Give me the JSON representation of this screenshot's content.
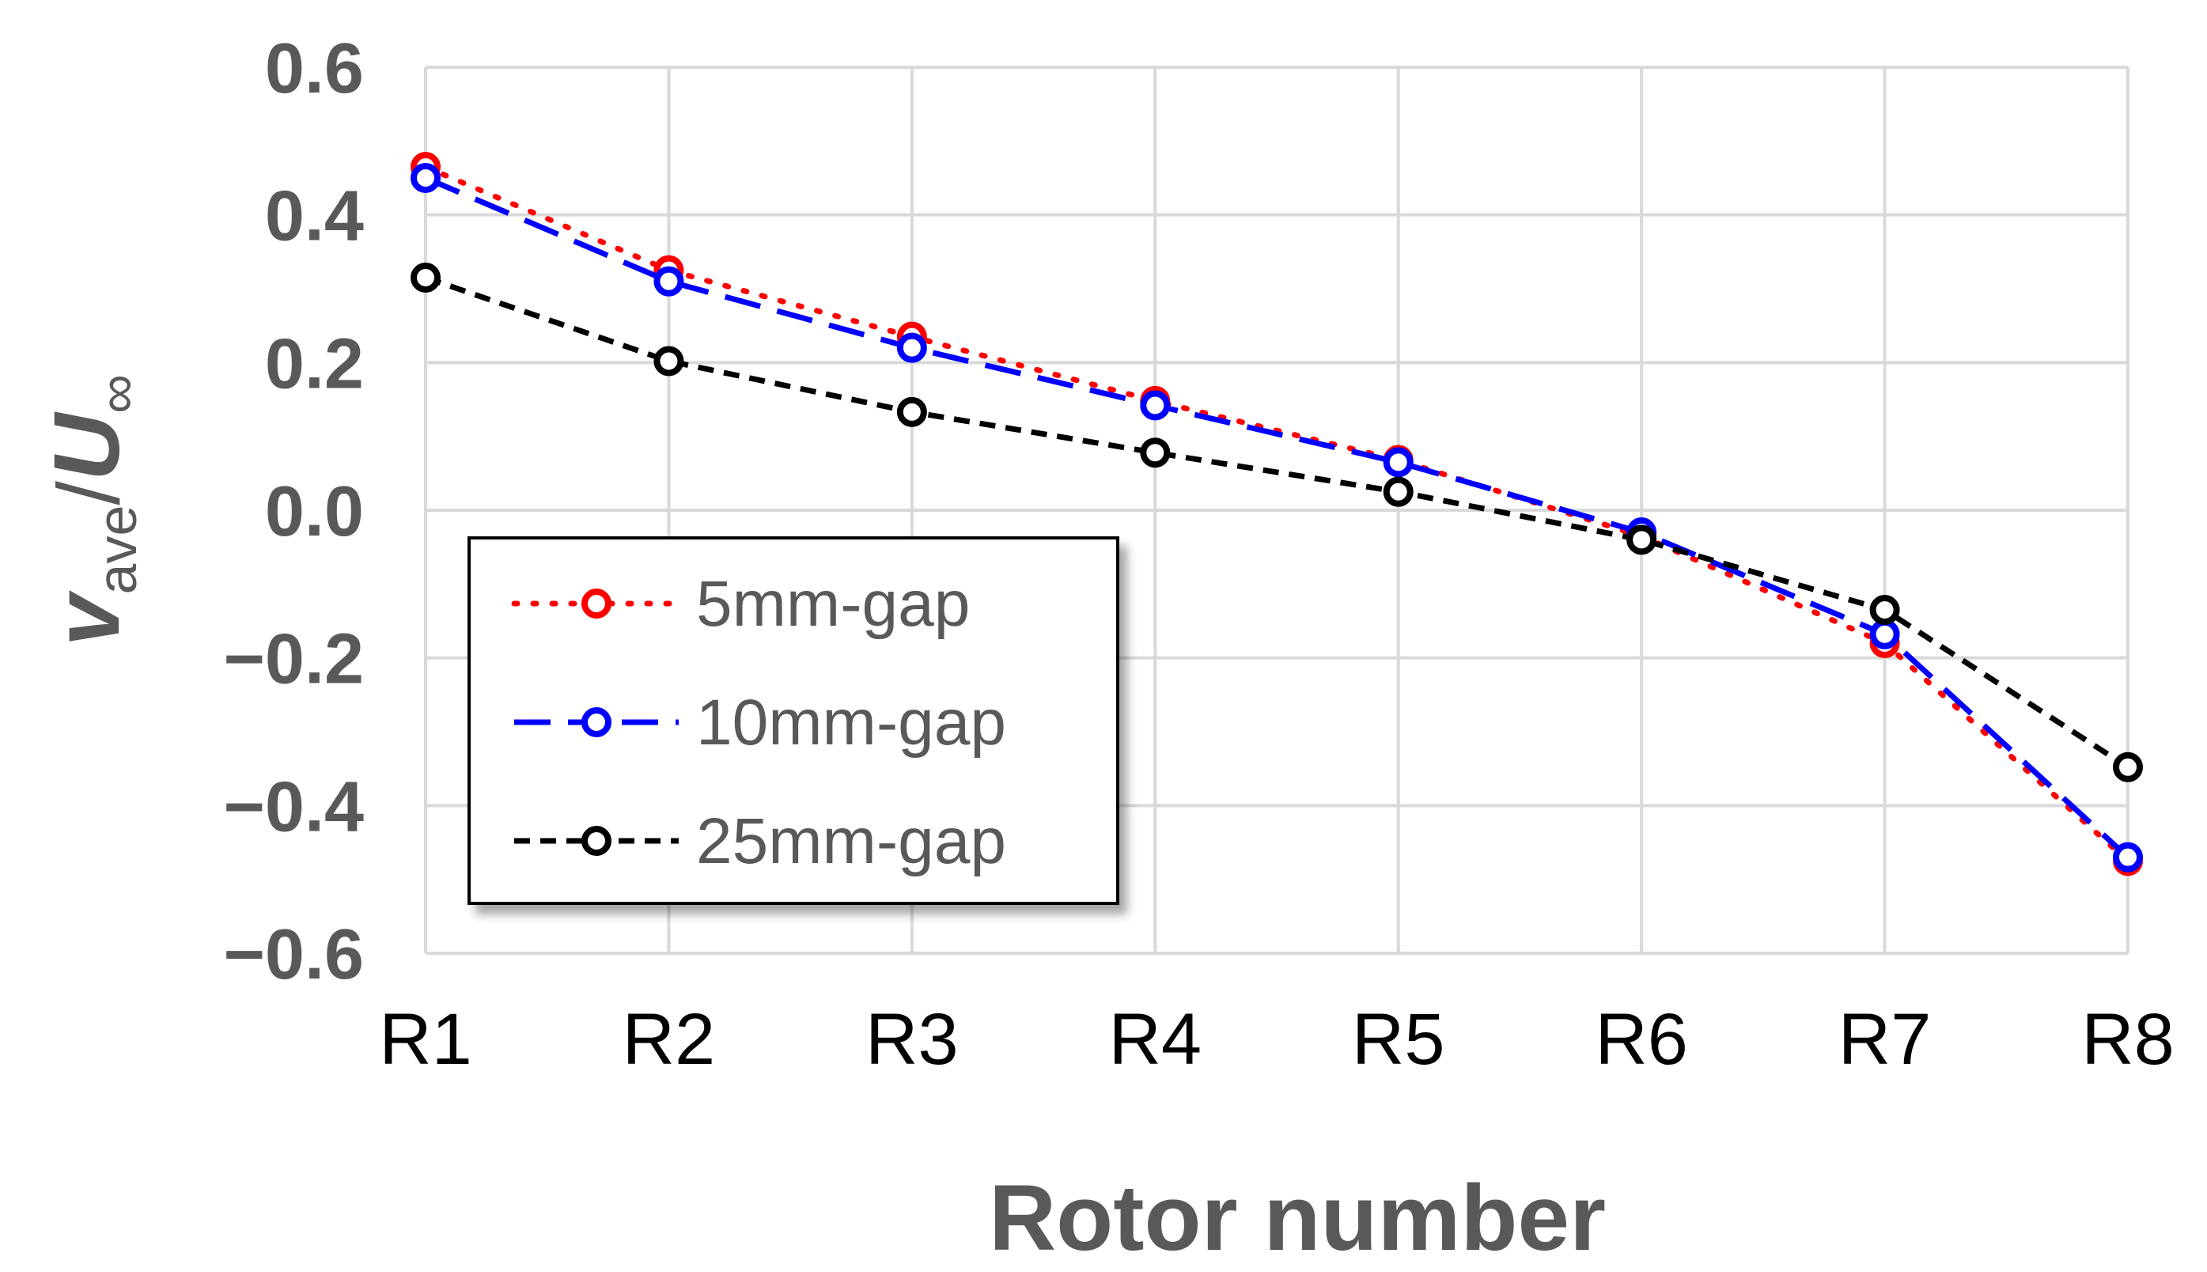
{
  "chart_data": {
    "type": "line",
    "categories": [
      "R1",
      "R2",
      "R3",
      "R4",
      "R5",
      "R6",
      "R7",
      "R8"
    ],
    "series": [
      {
        "name": "5mm-gap",
        "values": [
          0.465,
          0.325,
          0.235,
          0.148,
          0.068,
          -0.035,
          -0.18,
          -0.475
        ],
        "color": "#ff0000",
        "dash": "dotted"
      },
      {
        "name": "10mm-gap",
        "values": [
          0.45,
          0.31,
          0.22,
          0.142,
          0.065,
          -0.03,
          -0.168,
          -0.47
        ],
        "color": "#0000ff",
        "dash": "long-dash"
      },
      {
        "name": "25mm-gap",
        "values": [
          0.315,
          0.202,
          0.133,
          0.078,
          0.025,
          -0.04,
          -0.135,
          -0.348
        ],
        "color": "#000000",
        "dash": "short-dash"
      }
    ],
    "y_ticks": [
      "0.6",
      "0.4",
      "0.2",
      "0.0",
      "−0.2",
      "−0.4",
      "−0.6"
    ],
    "ylim": [
      -0.6,
      0.6
    ],
    "xlabel": "Rotor number",
    "ylabel": {
      "main": "v",
      "main_sub": "ave",
      "separator": "/",
      "denominator": "U",
      "denominator_sub": "∞"
    },
    "grid": true,
    "legend_position": "lower-left"
  }
}
